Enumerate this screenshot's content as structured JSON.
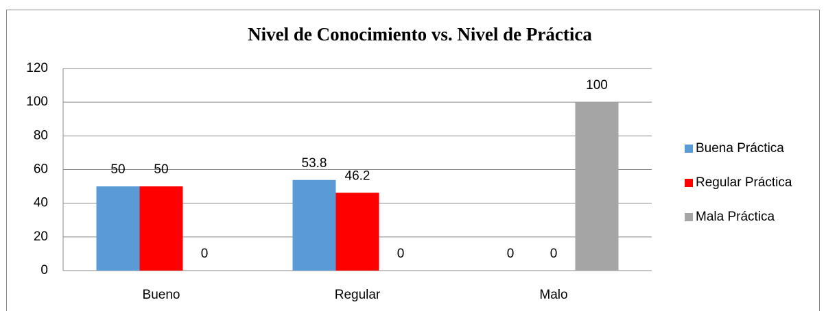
{
  "chart_data": {
    "type": "bar",
    "title": "Nivel de Conocimiento vs. Nivel de Práctica",
    "categories": [
      "Bueno",
      "Regular",
      "Malo"
    ],
    "series": [
      {
        "name": "Buena Práctica",
        "color": "#5b9bd5",
        "values": [
          50,
          53.8,
          0
        ]
      },
      {
        "name": "Regular Práctica",
        "color": "#ff0000",
        "values": [
          50,
          46.2,
          0
        ]
      },
      {
        "name": "Mala Práctica",
        "color": "#a5a5a5",
        "values": [
          0,
          0,
          100
        ]
      }
    ],
    "ylim": [
      0,
      120
    ],
    "yticks": [
      0,
      20,
      40,
      60,
      80,
      100,
      120
    ],
    "grid": true,
    "legend": "right"
  }
}
